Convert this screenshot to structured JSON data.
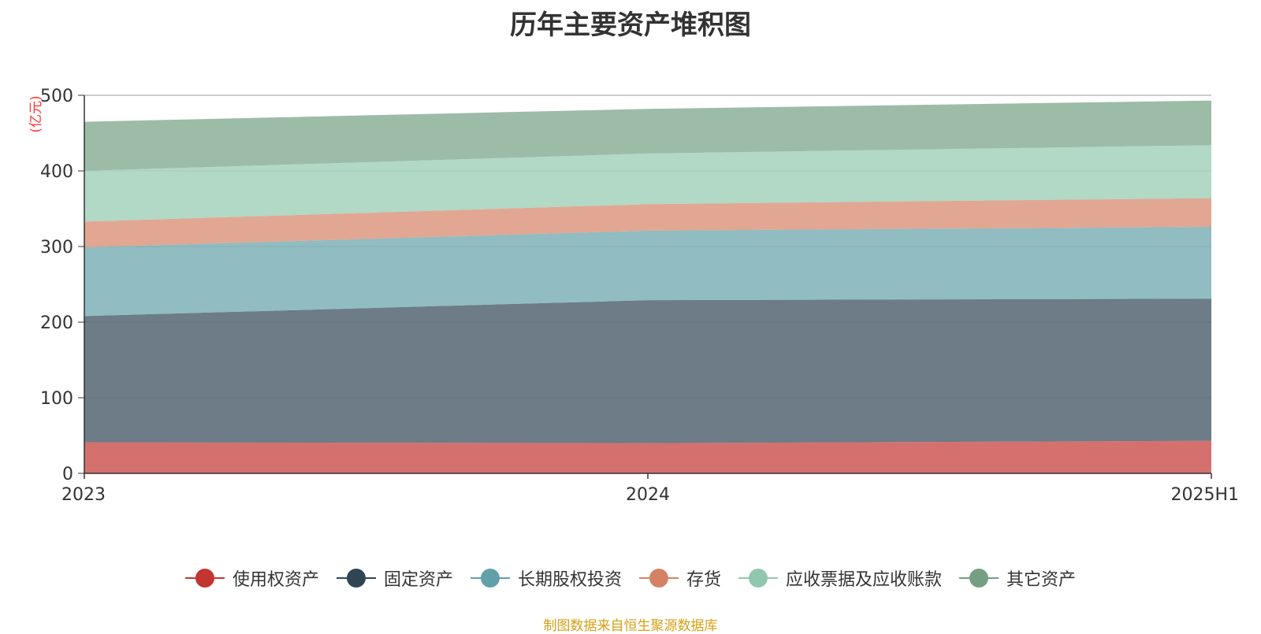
{
  "chart_data": {
    "type": "area",
    "stacked": true,
    "title": "历年主要资产堆积图",
    "ylabel": "(亿元)",
    "categories": [
      "2023",
      "2024",
      "2025H1"
    ],
    "ylim": [
      0,
      500
    ],
    "yticks": [
      0,
      100,
      200,
      300,
      400,
      500
    ],
    "grid": true,
    "legend_position": "bottom",
    "series": [
      {
        "name": "使用权资产",
        "values": [
          41,
          40,
          43
        ],
        "color": "#c23531"
      },
      {
        "name": "固定资产",
        "values": [
          167,
          189,
          188
        ],
        "color": "#2f4554"
      },
      {
        "name": "长期股权投资",
        "values": [
          91,
          92,
          95
        ],
        "color": "#61a0a8"
      },
      {
        "name": "存货",
        "values": [
          34,
          35,
          38
        ],
        "color": "#d48265"
      },
      {
        "name": "应收票据及应收账款",
        "values": [
          67,
          67,
          70
        ],
        "color": "#91c7ae"
      },
      {
        "name": "其它资产",
        "values": [
          65,
          59,
          59
        ],
        "color": "#749f83"
      }
    ]
  },
  "source_note": "制图数据来自恒生聚源数据库"
}
